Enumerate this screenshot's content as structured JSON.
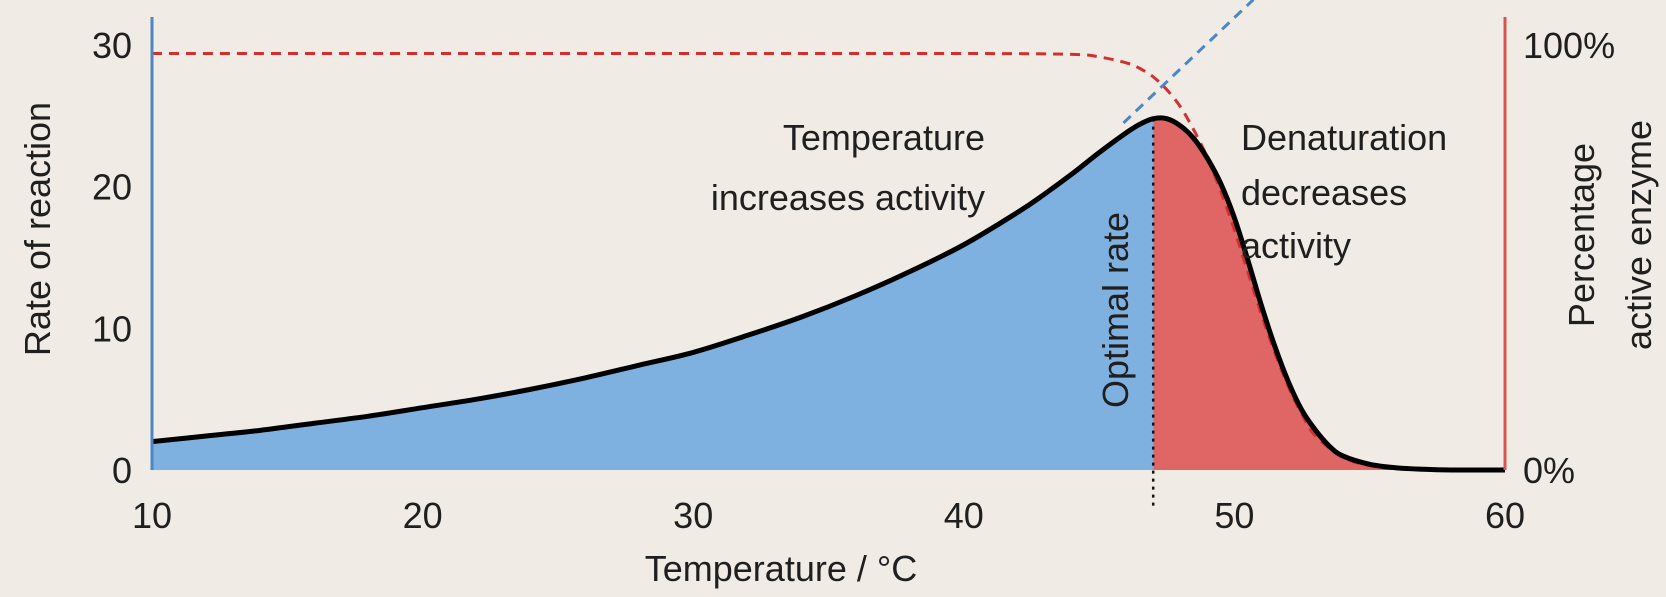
{
  "colors": {
    "background": "#F0ECE5",
    "left_axis": "#4a86c8",
    "right_axis": "#d9534f",
    "rising_fill": "#7fb1e0",
    "denatured_fill": "#e06666",
    "rate_curve": "#000000",
    "active_enzyme_line": "#d32f2f",
    "extrapolation_line": "#4a86c8"
  },
  "chart_data": {
    "type": "area",
    "xlabel": "Temperature / °C",
    "ylabel": "Rate of reaction",
    "y2label_line1": "Percentage",
    "y2label_line2": "active enzyme",
    "xlim": [
      10,
      60
    ],
    "ylim": [
      0,
      30
    ],
    "y2lim": [
      0,
      100
    ],
    "x_ticks": [
      "10",
      "20",
      "30",
      "40",
      "50",
      "60"
    ],
    "y_ticks": [
      "0",
      "10",
      "20",
      "30"
    ],
    "y2_ticks": [
      "0%",
      "100%"
    ],
    "optimum_temperature": 47,
    "series": [
      {
        "x": [
          10,
          12,
          14,
          16,
          18,
          20,
          22,
          24,
          26,
          28,
          30,
          32,
          34,
          36,
          38,
          40,
          42,
          43,
          44,
          45,
          46,
          46.5,
          47,
          47.5,
          48,
          48.5,
          49,
          49.5,
          50,
          50.5,
          51,
          51.5,
          52,
          52.5,
          53,
          53.5,
          54,
          55,
          56,
          57,
          58,
          59,
          60
        ],
        "y": [
          2.0,
          2.4,
          2.8,
          3.3,
          3.8,
          4.4,
          5.0,
          5.7,
          6.5,
          7.4,
          8.3,
          9.5,
          10.8,
          12.3,
          14.0,
          15.9,
          18.2,
          19.5,
          20.9,
          22.4,
          23.8,
          24.4,
          24.8,
          24.8,
          24.3,
          23.4,
          22.0,
          20.2,
          17.8,
          14.8,
          11.6,
          8.7,
          6.2,
          4.2,
          2.8,
          1.7,
          1.0,
          0.4,
          0.15,
          0.05,
          0.0,
          0.0,
          0.0
        ]
      },
      {
        "x": [
          10,
          20,
          30,
          40,
          44,
          45,
          46,
          46.5,
          47,
          47.5,
          48,
          48.5,
          49,
          49.5,
          50,
          50.5,
          51,
          51.5,
          52,
          52.5,
          53,
          54,
          55,
          56,
          58,
          60
        ],
        "y": [
          98,
          98,
          98,
          98,
          97.8,
          97.2,
          95.8,
          94.5,
          92.5,
          89.5,
          85.5,
          80,
          73.5,
          65.5,
          56.5,
          46.5,
          36.5,
          27.5,
          19.5,
          13,
          8,
          3,
          1,
          0.3,
          0,
          0
        ]
      },
      {
        "x": [
          45.9,
          50.7
        ],
        "y": [
          24.5,
          33.2
        ]
      }
    ],
    "annotations": {
      "rising_line1": "Temperature",
      "rising_line2": "increases activity",
      "falling_line1": "Denaturation",
      "falling_line2": "decreases",
      "falling_line3": "activity",
      "optimum": "Optimal rate"
    }
  }
}
